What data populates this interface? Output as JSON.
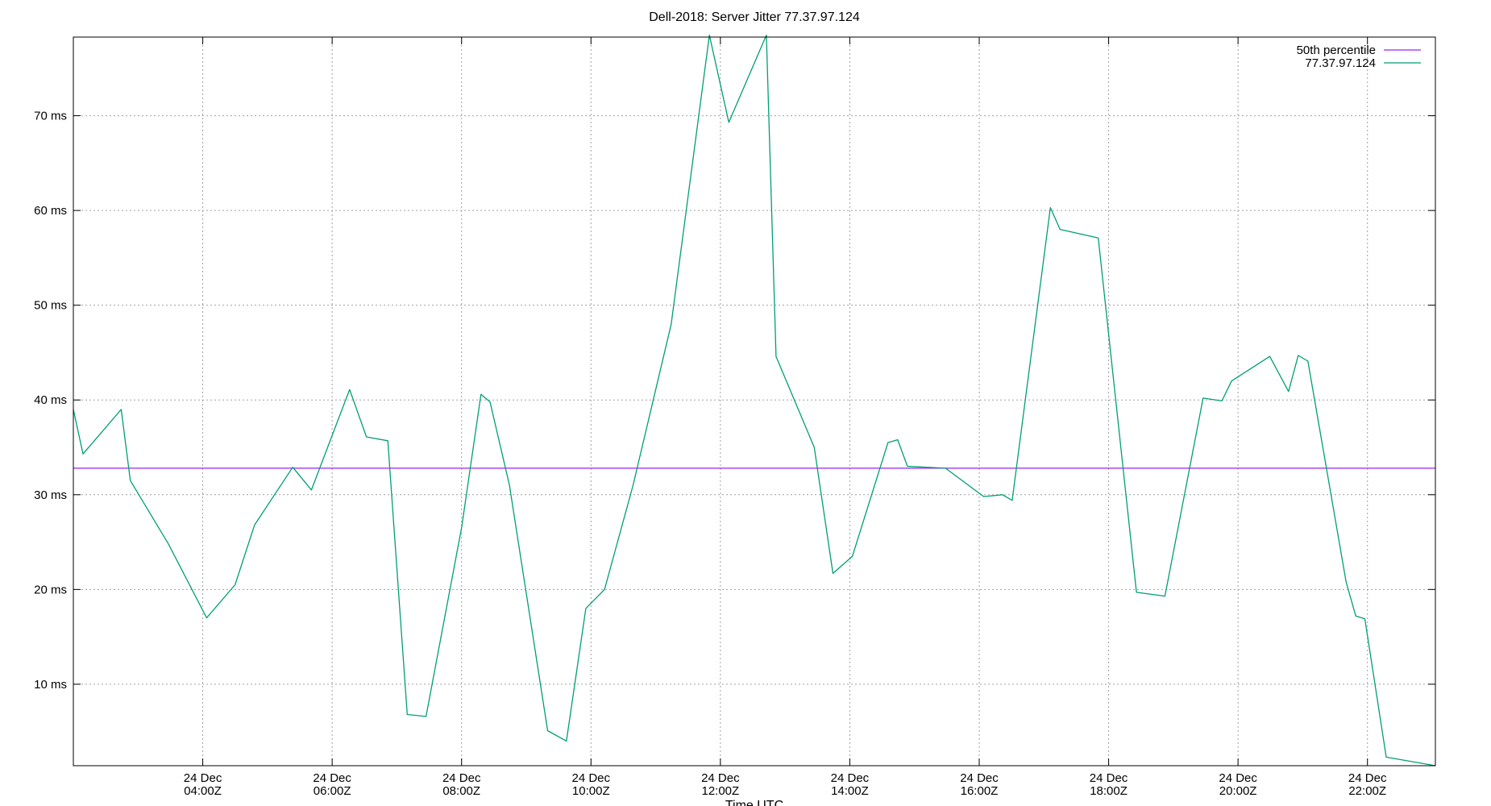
{
  "chart_data": {
    "type": "line",
    "title": "Dell-2018: Server Jitter 77.37.97.124",
    "xlabel": "Time UTC",
    "ylabel": "",
    "x_ticks": [
      {
        "hour": 4,
        "line1": "24 Dec",
        "line2": "04:00Z"
      },
      {
        "hour": 6,
        "line1": "24 Dec",
        "line2": "06:00Z"
      },
      {
        "hour": 8,
        "line1": "24 Dec",
        "line2": "08:00Z"
      },
      {
        "hour": 10,
        "line1": "24 Dec",
        "line2": "10:00Z"
      },
      {
        "hour": 12,
        "line1": "24 Dec",
        "line2": "12:00Z"
      },
      {
        "hour": 14,
        "line1": "24 Dec",
        "line2": "14:00Z"
      },
      {
        "hour": 16,
        "line1": "24 Dec",
        "line2": "16:00Z"
      },
      {
        "hour": 18,
        "line1": "24 Dec",
        "line2": "18:00Z"
      },
      {
        "hour": 20,
        "line1": "24 Dec",
        "line2": "20:00Z"
      },
      {
        "hour": 22,
        "line1": "24 Dec",
        "line2": "22:00Z"
      }
    ],
    "y_ticks": [
      {
        "value": 10,
        "label": "10 ms"
      },
      {
        "value": 20,
        "label": "20 ms"
      },
      {
        "value": 30,
        "label": "30 ms"
      },
      {
        "value": 40,
        "label": "40 ms"
      },
      {
        "value": 50,
        "label": "50 ms"
      },
      {
        "value": 60,
        "label": "60 ms"
      },
      {
        "value": 70,
        "label": "70 ms"
      }
    ],
    "xlim": [
      2.0,
      23.05
    ],
    "ylim": [
      1.4,
      78.3
    ],
    "grid": true,
    "legend_position": "top-right",
    "series": [
      {
        "name": "50th percentile",
        "color": "#a020f0",
        "x": [
          2.0,
          23.05
        ],
        "y": [
          32.8,
          32.8
        ]
      },
      {
        "name": "77.37.97.124",
        "color": "#009e73",
        "x": [
          2.0,
          2.15,
          2.74,
          2.88,
          3.47,
          4.06,
          4.5,
          4.8,
          5.39,
          5.68,
          6.27,
          6.53,
          6.86,
          7.16,
          7.45,
          8.0,
          8.3,
          8.44,
          8.74,
          9.33,
          9.62,
          9.92,
          10.21,
          10.65,
          11.24,
          11.83,
          12.13,
          12.71,
          12.86,
          13.45,
          13.74,
          14.04,
          14.59,
          14.74,
          14.89,
          15.48,
          16.07,
          16.36,
          16.51,
          17.1,
          17.25,
          17.84,
          18.43,
          18.87,
          19.46,
          19.75,
          19.9,
          20.49,
          20.78,
          20.93,
          21.08,
          21.67,
          21.82,
          21.96,
          22.29,
          23.05
        ],
        "y": [
          39.0,
          34.3,
          39.0,
          31.5,
          24.8,
          17.0,
          20.5,
          26.8,
          32.9,
          30.5,
          41.1,
          36.1,
          35.7,
          6.8,
          6.6,
          26.5,
          40.6,
          39.8,
          31.0,
          5.1,
          4.0,
          18.0,
          20.0,
          31.0,
          48.0,
          78.5,
          69.3,
          78.5,
          44.6,
          35.0,
          21.7,
          23.5,
          35.5,
          35.8,
          33.0,
          32.8,
          29.8,
          30.0,
          29.4,
          60.3,
          58.0,
          57.1,
          19.7,
          19.3,
          40.2,
          39.9,
          42.0,
          44.6,
          40.9,
          44.7,
          44.1,
          20.8,
          17.2,
          16.9,
          2.3,
          1.4
        ]
      }
    ]
  }
}
